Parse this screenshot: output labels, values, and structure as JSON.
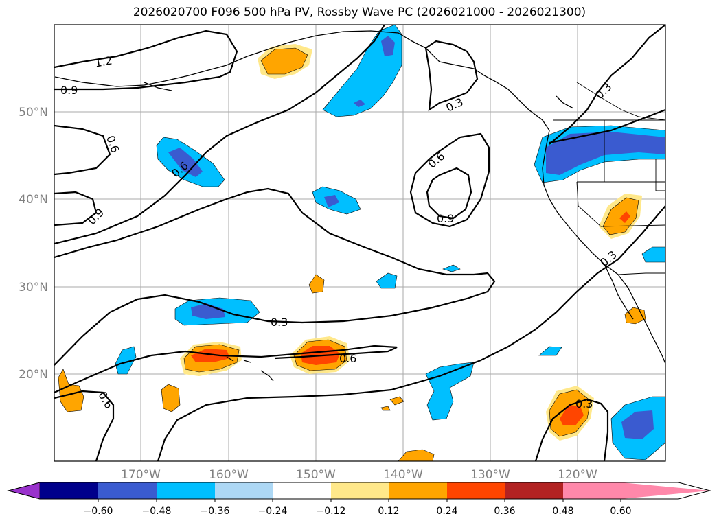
{
  "title": "2026020700 F096 500 hPa PV, Rossby Wave PC (2026021000 - 2026021300)",
  "map": {
    "lat_labels": [
      "50°N",
      "40°N",
      "30°N",
      "20°N"
    ],
    "lon_labels": [
      "170°W",
      "160°W",
      "150°W",
      "140°W",
      "130°W",
      "120°W"
    ],
    "contour_labels": [
      "1.2",
      "0.9",
      "0.6",
      "0.9",
      "0.6",
      "0.3",
      "0.6",
      "0.9",
      "0.6",
      "0.3",
      "0.3",
      "0.3",
      "0.6",
      "0.3"
    ]
  },
  "colorbar": {
    "tick_labels": [
      "−0.60",
      "−0.48",
      "−0.36",
      "−0.24",
      "−0.12",
      "0.12",
      "0.24",
      "0.36",
      "0.48",
      "0.60"
    ],
    "colors": [
      "#9932cc",
      "#00008b",
      "#3a5bd0",
      "#00bfff",
      "#add8f5",
      "#ffffff",
      "#ffe88a",
      "#ffa500",
      "#ff4500",
      "#b22222",
      "#ff88aa"
    ]
  }
}
